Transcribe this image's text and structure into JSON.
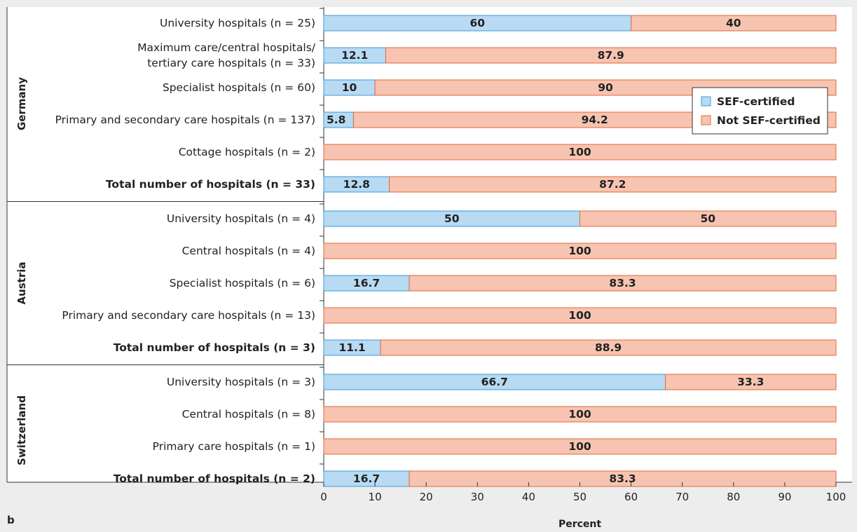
{
  "chart_data": {
    "type": "bar",
    "stacked": true,
    "orientation": "horizontal",
    "panel_label": "b",
    "xlabel": "Percent",
    "xlim": [
      0,
      100
    ],
    "xticks": [
      "0",
      "10",
      "20",
      "30",
      "40",
      "50",
      "60",
      "70",
      "80",
      "90",
      "100"
    ],
    "legend": {
      "placement": "top-right",
      "entries": [
        "SEF-certified",
        "Not SEF-certified"
      ]
    },
    "colors": {
      "sef_fill": "#b8daf3",
      "sef_border": "#3d9bd6",
      "not_fill": "#f6c4b0",
      "not_border": "#e2693c"
    },
    "groups": [
      {
        "name": "Germany",
        "rows": [
          {
            "label": [
              "University hospitals (n = 25)"
            ],
            "bold": false,
            "sef": 60,
            "not": 40
          },
          {
            "label": [
              "Maximum care/central hospitals/",
              "tertiary care hospitals (n = 33)"
            ],
            "bold": false,
            "sef": 12.1,
            "not": 87.9
          },
          {
            "label": [
              "Specialist hospitals (n = 60)"
            ],
            "bold": false,
            "sef": 10,
            "not": 90
          },
          {
            "label": [
              "Primary and secondary care hospitals (n = 137)"
            ],
            "bold": false,
            "sef": 5.8,
            "not": 94.2
          },
          {
            "label": [
              "Cottage hospitals (n = 2)"
            ],
            "bold": false,
            "sef": 0,
            "not": 100
          },
          {
            "label": [
              "Total number of hospitals (n = 33)"
            ],
            "bold": true,
            "sef": 12.8,
            "not": 87.2
          }
        ]
      },
      {
        "name": "Austria",
        "rows": [
          {
            "label": [
              "University hospitals (n = 4)"
            ],
            "bold": false,
            "sef": 50,
            "not": 50
          },
          {
            "label": [
              "Central hospitals (n = 4)"
            ],
            "bold": false,
            "sef": 0,
            "not": 100
          },
          {
            "label": [
              "Specialist hospitals (n = 6)"
            ],
            "bold": false,
            "sef": 16.7,
            "not": 83.3
          },
          {
            "label": [
              "Primary and secondary care hospitals (n = 13)"
            ],
            "bold": false,
            "sef": 0,
            "not": 100
          },
          {
            "label": [
              "Total number of hospitals (n = 3)"
            ],
            "bold": true,
            "sef": 11.1,
            "not": 88.9
          }
        ]
      },
      {
        "name": "Switzerland",
        "rows": [
          {
            "label": [
              "University hospitals (n = 3)"
            ],
            "bold": false,
            "sef": 66.7,
            "not": 33.3
          },
          {
            "label": [
              "Central hospitals (n = 8)"
            ],
            "bold": false,
            "sef": 0,
            "not": 100
          },
          {
            "label": [
              "Primary care hospitals (n = 1)"
            ],
            "bold": false,
            "sef": 0,
            "not": 100
          },
          {
            "label": [
              "Total number of hospitals (n = 2)"
            ],
            "bold": true,
            "sef": 16.7,
            "not": 83.3
          }
        ]
      }
    ]
  }
}
